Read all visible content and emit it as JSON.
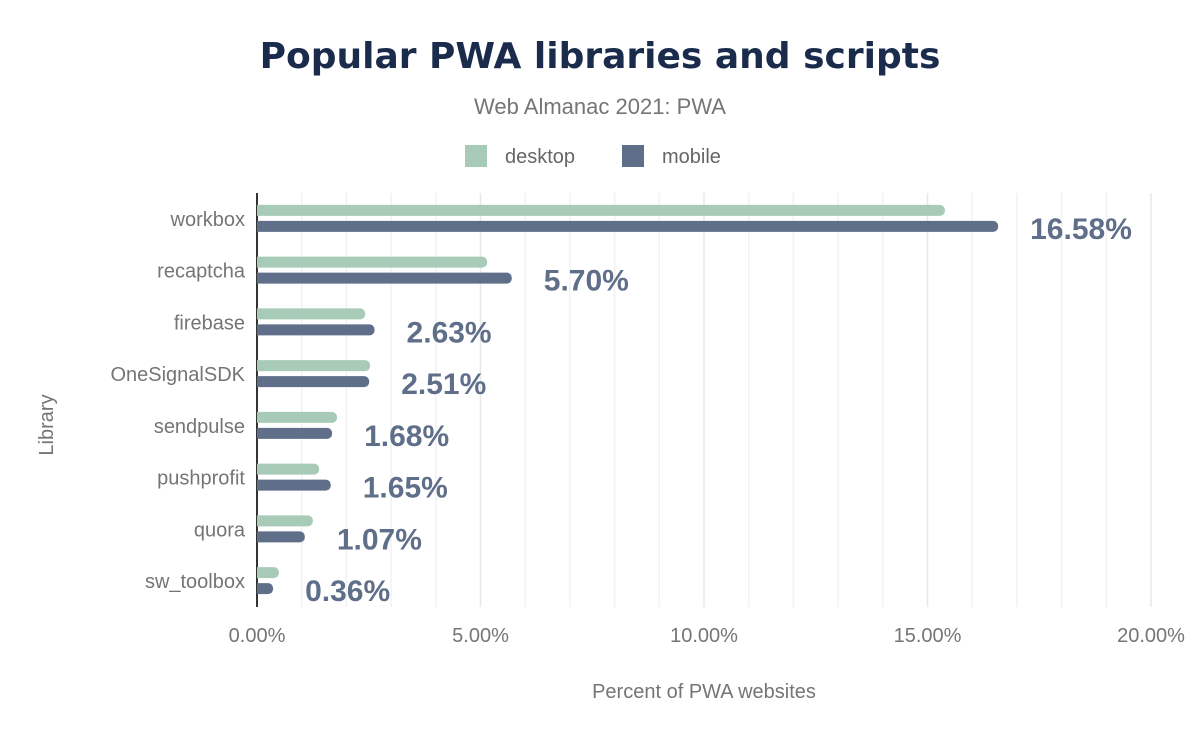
{
  "chart_data": {
    "type": "bar",
    "orientation": "horizontal",
    "title": "Popular PWA libraries and scripts",
    "subtitle": "Web Almanac 2021: PWA",
    "xlabel": "Percent of PWA websites",
    "ylabel": "Library",
    "categories": [
      "workbox",
      "recaptcha",
      "firebase",
      "OneSignalSDK",
      "sendpulse",
      "pushprofit",
      "quora",
      "sw_toolbox"
    ],
    "series": [
      {
        "name": "desktop",
        "color": "#a8cbb7",
        "values": [
          15.39,
          5.15,
          2.42,
          2.53,
          1.79,
          1.39,
          1.25,
          0.49
        ]
      },
      {
        "name": "mobile",
        "color": "#5f6f8a",
        "values": [
          16.58,
          5.7,
          2.63,
          2.51,
          1.68,
          1.65,
          1.07,
          0.36
        ]
      }
    ],
    "data_labels": [
      "16.58%",
      "5.70%",
      "2.63%",
      "2.51%",
      "1.68%",
      "1.65%",
      "1.07%",
      "0.36%"
    ],
    "xlim": [
      0,
      20
    ],
    "xticks": [
      "0.00%",
      "5.00%",
      "10.00%",
      "15.00%",
      "20.00%"
    ],
    "grid": true,
    "legend_placement": "top-center"
  }
}
